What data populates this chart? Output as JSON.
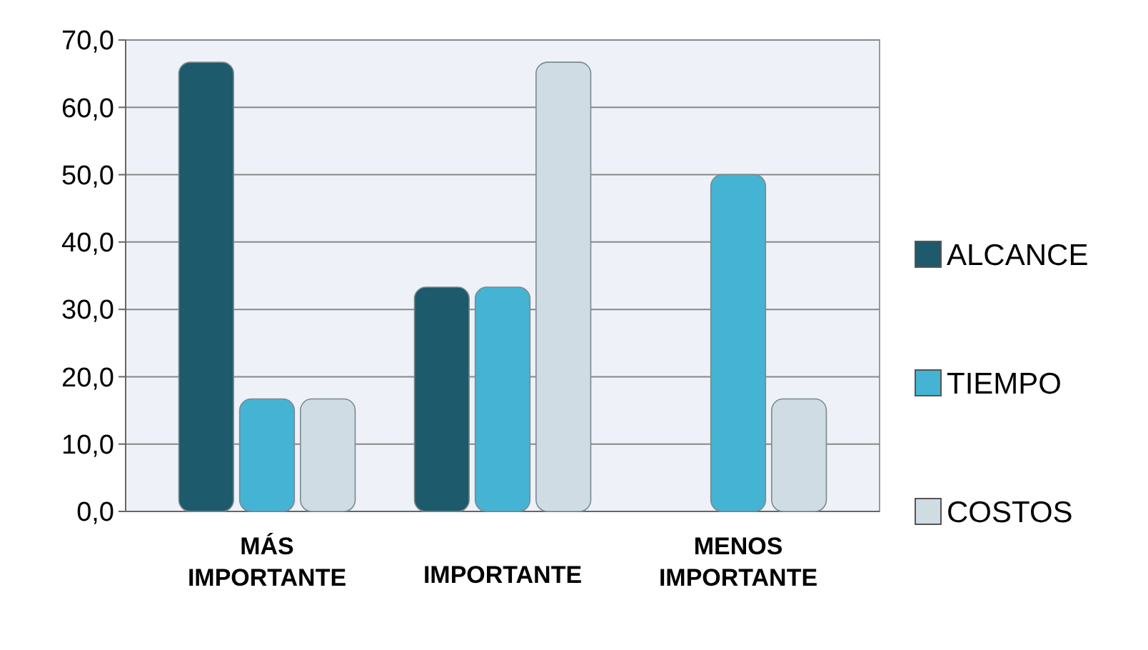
{
  "chart_data": {
    "type": "bar",
    "categories": [
      "MÁS IMPORTANTE",
      "IMPORTANTE",
      "MENOS IMPORTANTE"
    ],
    "series": [
      {
        "name": "ALCANCE",
        "color": "#1d5a6b",
        "values": [
          66.7,
          33.3,
          0
        ]
      },
      {
        "name": "TIEMPO",
        "color": "#45b3d3",
        "values": [
          16.7,
          33.3,
          50
        ]
      },
      {
        "name": "COSTOS",
        "color": "#cfdce4",
        "values": [
          16.7,
          66.7,
          16.7
        ]
      }
    ],
    "ylim": [
      0,
      70
    ],
    "yticks": [
      {
        "value": 0,
        "label": "0,0"
      },
      {
        "value": 10,
        "label": "10,0"
      },
      {
        "value": 20,
        "label": "20,0"
      },
      {
        "value": 30,
        "label": "30,0"
      },
      {
        "value": 40,
        "label": "40,0"
      },
      {
        "value": 50,
        "label": "50,0"
      },
      {
        "value": 60,
        "label": "60,0"
      },
      {
        "value": 70,
        "label": "70,0"
      }
    ],
    "grid": true,
    "legend": "right"
  }
}
